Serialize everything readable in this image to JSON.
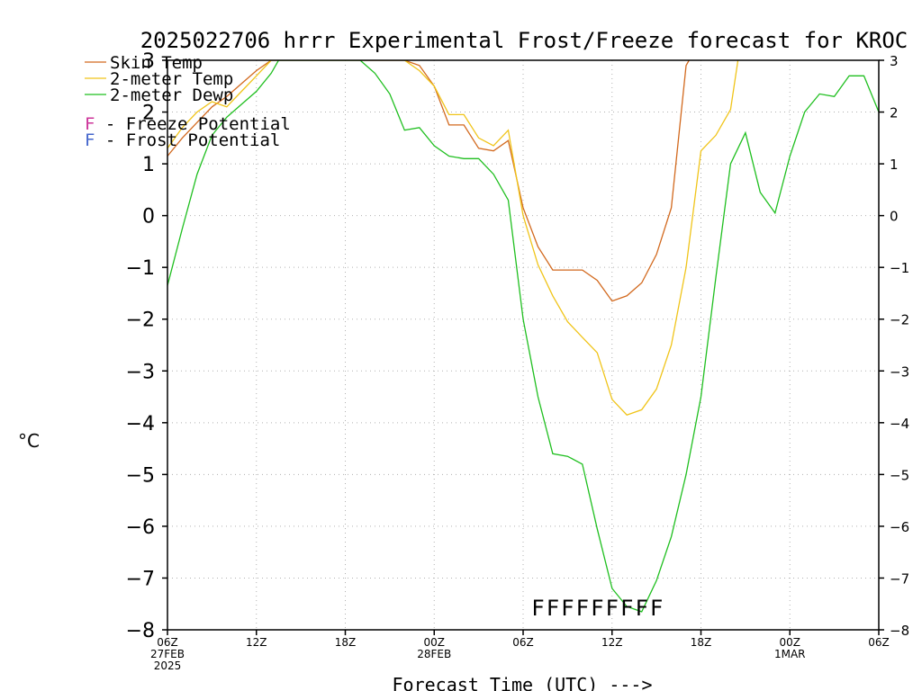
{
  "chart_data": {
    "type": "line",
    "title": "2025022706 hrrr Experimental Frost/Freeze forecast for KROC",
    "xlabel": "Forecast Time (UTC) --->",
    "ylabel": "°C",
    "ylim": [
      -8,
      3
    ],
    "yticks": [
      3,
      2,
      1,
      0,
      -1,
      -2,
      -3,
      -4,
      -5,
      -6,
      -7,
      -8
    ],
    "ytick_labels": [
      "3",
      "2",
      "1",
      "0",
      "−1",
      "−2",
      "−3",
      "−4",
      "−5",
      "−6",
      "−7",
      "−8"
    ],
    "xlim": [
      0,
      48
    ],
    "grid": true,
    "legend_position": "top-left",
    "x_ticks": [
      {
        "x": 0,
        "label": "06Z",
        "sub": [
          "27FEB",
          "2025"
        ]
      },
      {
        "x": 6,
        "label": "12Z",
        "sub": []
      },
      {
        "x": 12,
        "label": "18Z",
        "sub": []
      },
      {
        "x": 18,
        "label": "00Z",
        "sub": [
          "28FEB"
        ]
      },
      {
        "x": 24,
        "label": "06Z",
        "sub": []
      },
      {
        "x": 30,
        "label": "12Z",
        "sub": []
      },
      {
        "x": 36,
        "label": "18Z",
        "sub": []
      },
      {
        "x": 42,
        "label": "00Z",
        "sub": [
          "1MAR"
        ]
      },
      {
        "x": 48,
        "label": "06Z",
        "sub": []
      }
    ],
    "series": [
      {
        "name": "Skin Temp",
        "color": "#d2691e",
        "points": [
          [
            0,
            1.15
          ],
          [
            1,
            1.5
          ],
          [
            2,
            1.8
          ],
          [
            3,
            2.1
          ],
          [
            4,
            2.3
          ],
          [
            5,
            2.55
          ],
          [
            6,
            2.8
          ],
          [
            7,
            3.0
          ],
          [
            16,
            3.0
          ],
          [
            17,
            2.9
          ],
          [
            18,
            2.5
          ],
          [
            19,
            1.75
          ],
          [
            20,
            1.75
          ],
          [
            21,
            1.3
          ],
          [
            22,
            1.25
          ],
          [
            23,
            1.45
          ],
          [
            24,
            0.15
          ],
          [
            25,
            -0.6
          ],
          [
            26,
            -1.05
          ],
          [
            27,
            -1.05
          ],
          [
            28,
            -1.05
          ],
          [
            29,
            -1.25
          ],
          [
            30,
            -1.65
          ],
          [
            31,
            -1.55
          ],
          [
            32,
            -1.3
          ],
          [
            33,
            -0.75
          ],
          [
            34,
            0.15
          ],
          [
            35,
            2.9
          ],
          [
            35.2,
            3.0
          ]
        ]
      },
      {
        "name": "2-meter Temp",
        "color": "#f0c419",
        "points": [
          [
            0,
            1.3
          ],
          [
            1,
            1.7
          ],
          [
            2,
            2.0
          ],
          [
            3,
            2.2
          ],
          [
            4,
            2.1
          ],
          [
            5,
            2.4
          ],
          [
            6,
            2.7
          ],
          [
            7,
            3.0
          ],
          [
            16,
            3.0
          ],
          [
            17,
            2.8
          ],
          [
            18,
            2.5
          ],
          [
            19,
            1.95
          ],
          [
            20,
            1.95
          ],
          [
            21,
            1.5
          ],
          [
            22,
            1.35
          ],
          [
            23,
            1.65
          ],
          [
            24,
            0.0
          ],
          [
            25,
            -0.95
          ],
          [
            26,
            -1.55
          ],
          [
            27,
            -2.05
          ],
          [
            28,
            -2.35
          ],
          [
            29,
            -2.65
          ],
          [
            30,
            -3.55
          ],
          [
            31,
            -3.85
          ],
          [
            32,
            -3.75
          ],
          [
            33,
            -3.35
          ],
          [
            34,
            -2.5
          ],
          [
            35,
            -1.0
          ],
          [
            36,
            1.25
          ],
          [
            37,
            1.55
          ],
          [
            38,
            2.05
          ],
          [
            38.5,
            3.0
          ]
        ]
      },
      {
        "name": "2-meter Dewp",
        "color": "#1fbf1f",
        "points": [
          [
            0,
            -1.35
          ],
          [
            1,
            -0.25
          ],
          [
            2,
            0.8
          ],
          [
            3,
            1.55
          ],
          [
            4,
            1.9
          ],
          [
            5,
            2.15
          ],
          [
            6,
            2.4
          ],
          [
            7,
            2.75
          ],
          [
            7.5,
            3.0
          ],
          [
            13,
            3.0
          ],
          [
            14,
            2.75
          ],
          [
            15,
            2.35
          ],
          [
            16,
            1.65
          ],
          [
            17,
            1.7
          ],
          [
            18,
            1.35
          ],
          [
            19,
            1.15
          ],
          [
            20,
            1.1
          ],
          [
            21,
            1.1
          ],
          [
            22,
            0.8
          ],
          [
            23,
            0.3
          ],
          [
            24,
            -2.0
          ],
          [
            25,
            -3.5
          ],
          [
            26,
            -4.6
          ],
          [
            27,
            -4.65
          ],
          [
            28,
            -4.8
          ],
          [
            29,
            -6.05
          ],
          [
            30,
            -7.2
          ],
          [
            31,
            -7.55
          ],
          [
            32,
            -7.65
          ],
          [
            33,
            -7.05
          ],
          [
            34,
            -6.2
          ],
          [
            35,
            -5.0
          ],
          [
            36,
            -3.5
          ],
          [
            37,
            -1.2
          ],
          [
            38,
            1.0
          ],
          [
            39,
            1.6
          ],
          [
            40,
            0.45
          ],
          [
            41,
            0.05
          ],
          [
            42,
            1.15
          ],
          [
            43,
            2.0
          ],
          [
            44,
            2.35
          ],
          [
            45,
            2.3
          ],
          [
            46,
            2.7
          ],
          [
            47,
            2.7
          ],
          [
            48,
            2.0
          ]
        ]
      }
    ],
    "legend": [
      {
        "label": "Skin Temp",
        "color": "#d2691e",
        "type": "line"
      },
      {
        "label": "2-meter Temp",
        "color": "#f0c419",
        "type": "line"
      },
      {
        "label": "2-meter Dewp",
        "color": "#1fbf1f",
        "type": "line"
      },
      {
        "label": "F - Freeze Potential",
        "color": "#cc3399",
        "type": "marker"
      },
      {
        "label": "F - Frost Potential",
        "color": "#4466cc",
        "type": "marker"
      }
    ],
    "freeze_markers": {
      "char": "F",
      "color": "#cc3399",
      "y": -7.55,
      "x": [
        25,
        26,
        27,
        28,
        29,
        30,
        31,
        32,
        33
      ]
    }
  }
}
